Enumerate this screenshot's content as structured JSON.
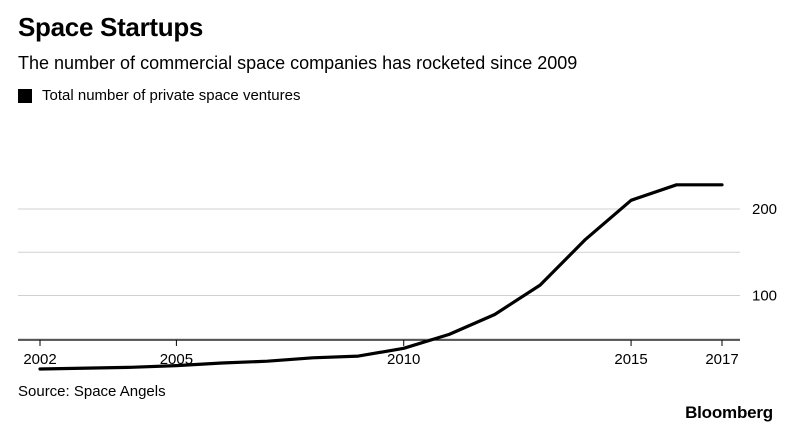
{
  "chart_data": {
    "type": "line",
    "title": "Space Startups",
    "subtitle": "The number of commercial space companies has rocketed since 2009",
    "series": [
      {
        "name": "Total number of private space ventures",
        "color": "#000000",
        "x": [
          2002,
          2004,
          2005,
          2006,
          2007,
          2008,
          2009,
          2010,
          2011,
          2012,
          2013,
          2014,
          2015,
          2016,
          2017
        ],
        "values": [
          15,
          17,
          19,
          22,
          24,
          28,
          30,
          39,
          55,
          78,
          112,
          165,
          210,
          228,
          228
        ]
      }
    ],
    "xlim": [
      2002,
      2017
    ],
    "ylim": [
      0,
      250
    ],
    "x_ticks": [
      {
        "value": 2002,
        "label": "2002"
      },
      {
        "value": 2005,
        "label": "2005"
      },
      {
        "value": 2010,
        "label": "2010"
      },
      {
        "value": 2015,
        "label": "2015"
      },
      {
        "value": 2017,
        "label": "2017"
      }
    ],
    "y_ticks": [
      {
        "value": 100,
        "label": "100"
      },
      {
        "value": 200,
        "label": "200"
      }
    ],
    "gridlines": [
      50,
      100,
      150,
      200
    ],
    "grid": true,
    "legend_placement": "top-left"
  },
  "source": "Source: Space Angels",
  "brand": "Bloomberg"
}
